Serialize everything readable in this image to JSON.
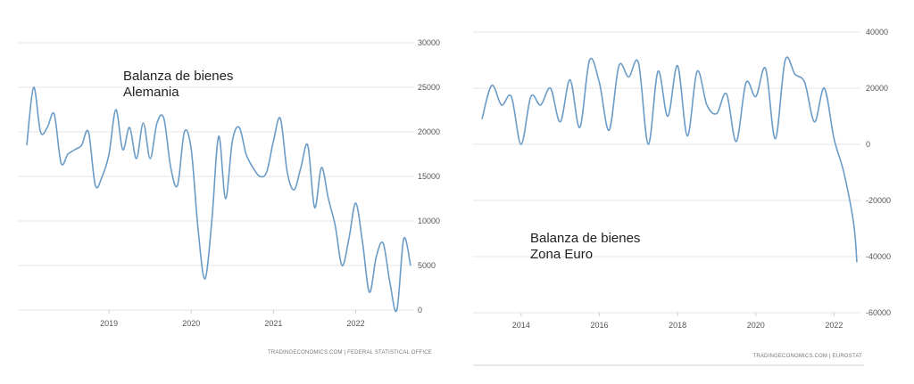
{
  "chart_data": [
    {
      "type": "line",
      "title": "",
      "annotation_lines": [
        "Balanza de bienes",
        "Alemania"
      ],
      "source": "TRADINGECONOMICS.COM | FEDERAL STATISTICAL OFFICE",
      "xlabel": "",
      "ylabel": "",
      "x_ticks": [
        "2019",
        "2020",
        "2021",
        "2022"
      ],
      "y_ticks": [
        "30000",
        "25000",
        "20000",
        "15000",
        "10000",
        "5000",
        "0"
      ],
      "ylim": [
        0,
        30000
      ],
      "xlim": [
        "2018-01",
        "2022-09"
      ],
      "grid": true,
      "y_axis_side": "right",
      "line_color": "#6b9cc7",
      "series": [
        {
          "x": [
            "2018-01",
            "2018-02",
            "2018-03",
            "2018-04",
            "2018-05",
            "2018-06",
            "2018-07",
            "2018-08",
            "2018-09",
            "2018-10",
            "2018-11",
            "2018-12",
            "2019-01",
            "2019-02",
            "2019-03",
            "2019-04",
            "2019-05",
            "2019-06",
            "2019-07",
            "2019-08",
            "2019-09",
            "2019-10",
            "2019-11",
            "2019-12",
            "2020-01",
            "2020-02",
            "2020-03",
            "2020-04",
            "2020-05",
            "2020-06",
            "2020-07",
            "2020-08",
            "2020-09",
            "2020-10",
            "2020-11",
            "2020-12",
            "2021-01",
            "2021-02",
            "2021-03",
            "2021-04",
            "2021-05",
            "2021-06",
            "2021-07",
            "2021-08",
            "2021-09",
            "2021-10",
            "2021-11",
            "2021-12",
            "2022-01",
            "2022-02",
            "2022-03",
            "2022-04",
            "2022-05",
            "2022-06",
            "2022-07",
            "2022-08",
            "2022-09"
          ],
          "values": [
            18500,
            25000,
            20000,
            20500,
            22000,
            16500,
            17500,
            18000,
            18500,
            20000,
            14000,
            15000,
            17500,
            22500,
            18000,
            20500,
            17000,
            21000,
            17000,
            21000,
            21500,
            16000,
            14000,
            20000,
            18000,
            9000,
            3500,
            10000,
            19500,
            12500,
            19000,
            20500,
            17500,
            16000,
            15000,
            15500,
            19000,
            21500,
            15500,
            13500,
            16000,
            18500,
            11500,
            16000,
            12500,
            9500,
            5000,
            8000,
            12000,
            7500,
            2000,
            6000,
            7500,
            3000,
            0,
            8000,
            5000
          ]
        }
      ]
    },
    {
      "type": "line",
      "title": "",
      "annotation_lines": [
        "Balanza de bienes",
        "Zona Euro"
      ],
      "source": "TRADINGECONOMICS.COM | EUROSTAT",
      "xlabel": "",
      "ylabel": "",
      "x_ticks": [
        "2014",
        "2016",
        "2018",
        "2020",
        "2022"
      ],
      "y_ticks": [
        "40000",
        "20000",
        "0",
        "-20000",
        "-40000",
        "-60000"
      ],
      "ylim": [
        -60000,
        40000
      ],
      "xlim": [
        "2013-01",
        "2022-08"
      ],
      "grid": true,
      "y_axis_side": "right",
      "line_color": "#6b9cc7",
      "series": [
        {
          "x": [
            "2013-01",
            "2013-04",
            "2013-07",
            "2013-10",
            "2014-01",
            "2014-04",
            "2014-07",
            "2014-10",
            "2015-01",
            "2015-04",
            "2015-07",
            "2015-10",
            "2016-01",
            "2016-04",
            "2016-07",
            "2016-10",
            "2017-01",
            "2017-04",
            "2017-07",
            "2017-10",
            "2018-01",
            "2018-04",
            "2018-07",
            "2018-10",
            "2019-01",
            "2019-04",
            "2019-07",
            "2019-10",
            "2020-01",
            "2020-04",
            "2020-07",
            "2020-10",
            "2021-01",
            "2021-04",
            "2021-07",
            "2021-10",
            "2022-01",
            "2022-04",
            "2022-07",
            "2022-08"
          ],
          "values": [
            9000,
            21000,
            14000,
            17000,
            0,
            17000,
            14000,
            20000,
            8000,
            23000,
            6000,
            30000,
            22000,
            5000,
            28000,
            24000,
            29000,
            0,
            26000,
            10000,
            28000,
            3000,
            26000,
            14000,
            11000,
            18000,
            1000,
            22000,
            17000,
            27000,
            2000,
            30000,
            25000,
            22000,
            8000,
            20000,
            2000,
            -10000,
            -28000,
            -42000
          ]
        }
      ]
    }
  ]
}
